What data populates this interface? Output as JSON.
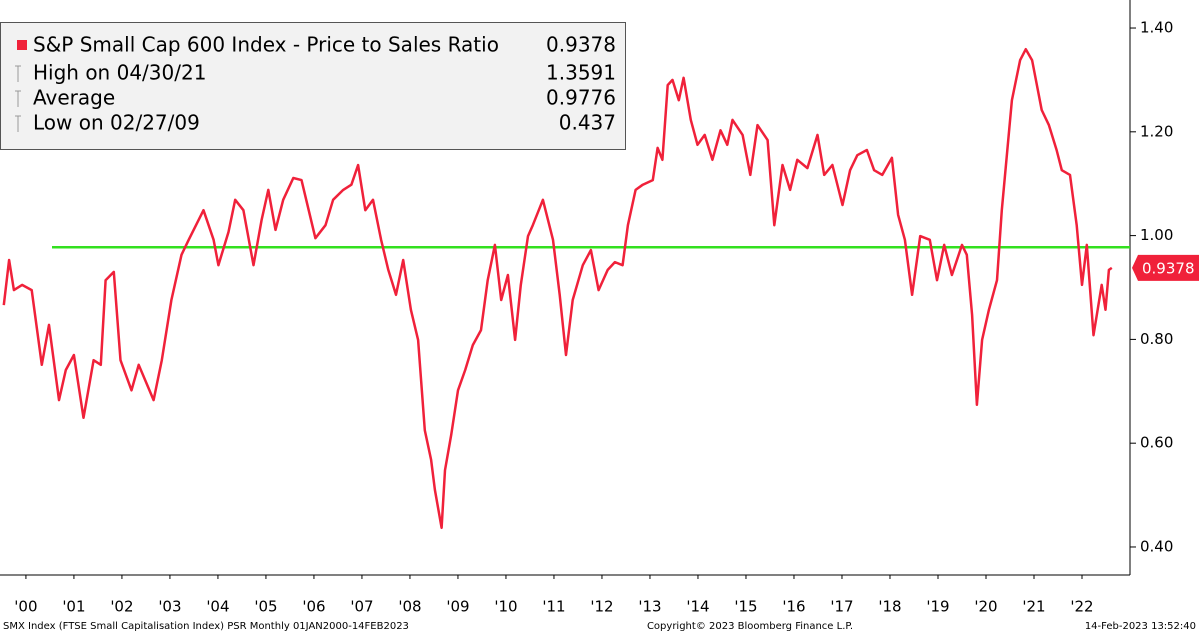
{
  "chart_data": {
    "type": "line",
    "series": [
      {
        "name": "S&P Small Cap 600 Index - Price to Sales Ratio",
        "color": "#f0213a",
        "x": [
          2000.04,
          2000.15,
          2000.25,
          2000.42,
          2000.62,
          2000.83,
          2000.98,
          2001.19,
          2001.33,
          2001.5,
          2001.7,
          2001.91,
          2002.06,
          2002.16,
          2002.33,
          2002.47,
          2002.7,
          2002.85,
          2003.16,
          2003.33,
          2003.53,
          2003.74,
          2003.89,
          2004.2,
          2004.41,
          2004.51,
          2004.72,
          2004.86,
          2005.03,
          2005.24,
          2005.41,
          2005.55,
          2005.7,
          2005.86,
          2006.07,
          2006.24,
          2006.53,
          2006.74,
          2006.9,
          2007.11,
          2007.28,
          2007.42,
          2007.57,
          2007.73,
          2007.9,
          2008.05,
          2008.21,
          2008.36,
          2008.52,
          2008.67,
          2008.81,
          2008.94,
          2009.02,
          2009.16,
          2009.23,
          2009.36,
          2009.5,
          2009.65,
          2009.81,
          2009.98,
          2010.12,
          2010.27,
          2010.4,
          2010.54,
          2010.69,
          2010.81,
          2010.96,
          2011.06,
          2011.27,
          2011.48,
          2011.62,
          2011.75,
          2011.89,
          2012.1,
          2012.27,
          2012.43,
          2012.62,
          2012.77,
          2012.93,
          2013.04,
          2013.2,
          2013.35,
          2013.56,
          2013.66,
          2013.76,
          2013.87,
          2013.97,
          2014.1,
          2014.2,
          2014.35,
          2014.49,
          2014.64,
          2014.8,
          2014.97,
          2015.11,
          2015.22,
          2015.43,
          2015.59,
          2015.74,
          2015.95,
          2016.09,
          2016.26,
          2016.42,
          2016.57,
          2016.78,
          2016.99,
          2017.13,
          2017.3,
          2017.51,
          2017.67,
          2017.82,
          2018.02,
          2018.17,
          2018.34,
          2018.54,
          2018.67,
          2018.81,
          2018.96,
          2019.13,
          2019.33,
          2019.48,
          2019.63,
          2019.79,
          2020.0,
          2020.1,
          2020.21,
          2020.31,
          2020.42,
          2020.56,
          2020.73,
          2020.83,
          2021.04,
          2021.21,
          2021.33,
          2021.46,
          2021.66,
          2021.81,
          2021.97,
          2022.08,
          2022.25,
          2022.39,
          2022.5,
          2022.6,
          2022.74,
          2022.91,
          2022.99,
          2023.06,
          2023.12
        ],
        "values": [
          0.866,
          0.953,
          0.895,
          0.905,
          0.895,
          0.751,
          0.828,
          0.683,
          0.741,
          0.77,
          0.649,
          0.76,
          0.751,
          0.914,
          0.93,
          0.76,
          0.702,
          0.751,
          0.683,
          0.76,
          0.876,
          0.963,
          0.992,
          1.049,
          0.992,
          0.943,
          1.007,
          1.069,
          1.049,
          0.943,
          1.03,
          1.088,
          1.011,
          1.069,
          1.111,
          1.107,
          0.995,
          1.02,
          1.069,
          1.088,
          1.098,
          1.136,
          1.049,
          1.069,
          0.992,
          0.934,
          0.886,
          0.953,
          0.857,
          0.799,
          0.625,
          0.568,
          0.51,
          0.437,
          0.548,
          0.616,
          0.702,
          0.741,
          0.789,
          0.818,
          0.914,
          0.982,
          0.876,
          0.924,
          0.799,
          0.905,
          0.999,
          1.02,
          1.069,
          0.992,
          0.886,
          0.77,
          0.876,
          0.943,
          0.972,
          0.895,
          0.934,
          0.949,
          0.943,
          1.02,
          1.088,
          1.098,
          1.107,
          1.169,
          1.146,
          1.29,
          1.3,
          1.261,
          1.304,
          1.223,
          1.175,
          1.194,
          1.146,
          1.203,
          1.175,
          1.223,
          1.194,
          1.117,
          1.213,
          1.184,
          1.02,
          1.136,
          1.088,
          1.146,
          1.13,
          1.194,
          1.117,
          1.136,
          1.059,
          1.126,
          1.155,
          1.165,
          1.126,
          1.117,
          1.15,
          1.04,
          0.992,
          0.886,
          0.999,
          0.992,
          0.914,
          0.982,
          0.924,
          0.982,
          0.963,
          0.847,
          0.674,
          0.799,
          0.857,
          0.914,
          1.049,
          1.261,
          1.338,
          1.3591,
          1.338,
          1.242,
          1.213,
          1.165,
          1.126,
          1.117,
          1.02,
          0.905,
          0.982,
          0.808,
          0.905,
          0.857,
          0.934,
          0.9378
        ]
      }
    ],
    "average": {
      "label": "Average",
      "value": 0.9776,
      "color": "#33e01f"
    },
    "high": {
      "label": "High on 04/30/21",
      "value": 1.3591
    },
    "low": {
      "label": "Low on 02/27/09",
      "value": 0.437
    },
    "xlim": [
      1999.96,
      2023.5
    ],
    "xticks": [
      {
        "value": 2000.5,
        "label": "'00"
      },
      {
        "value": 2001.5,
        "label": "'01"
      },
      {
        "value": 2002.5,
        "label": "'02"
      },
      {
        "value": 2003.5,
        "label": "'03"
      },
      {
        "value": 2004.5,
        "label": "'04"
      },
      {
        "value": 2005.5,
        "label": "'05"
      },
      {
        "value": 2006.5,
        "label": "'06"
      },
      {
        "value": 2007.5,
        "label": "'07"
      },
      {
        "value": 2008.5,
        "label": "'08"
      },
      {
        "value": 2009.5,
        "label": "'09"
      },
      {
        "value": 2010.5,
        "label": "'10"
      },
      {
        "value": 2011.5,
        "label": "'11"
      },
      {
        "value": 2012.5,
        "label": "'12"
      },
      {
        "value": 2013.5,
        "label": "'13"
      },
      {
        "value": 2014.5,
        "label": "'14"
      },
      {
        "value": 2015.5,
        "label": "'15"
      },
      {
        "value": 2016.5,
        "label": "'16"
      },
      {
        "value": 2017.5,
        "label": "'17"
      },
      {
        "value": 2018.5,
        "label": "'18"
      },
      {
        "value": 2019.5,
        "label": "'19"
      },
      {
        "value": 2020.5,
        "label": "'20"
      },
      {
        "value": 2021.5,
        "label": "'21"
      },
      {
        "value": 2022.5,
        "label": "'22"
      }
    ],
    "ylim": [
      0.346,
      1.454
    ],
    "yticks": [
      {
        "value": 0.4,
        "label": "0.40"
      },
      {
        "value": 0.6,
        "label": "0.60"
      },
      {
        "value": 0.8,
        "label": "0.80"
      },
      {
        "value": 1.0,
        "label": "1.00"
      },
      {
        "value": 1.2,
        "label": "1.20"
      },
      {
        "value": 1.4,
        "label": "1.40"
      }
    ],
    "footer": {
      "left": "SMX Index (FTSE Small Capitalisation Index) PSR  Monthly 01JAN2000-14FEB2023",
      "center": "Copyright© 2023 Bloomberg Finance L.P.",
      "right": "14-Feb-2023 13:52:40"
    }
  }
}
